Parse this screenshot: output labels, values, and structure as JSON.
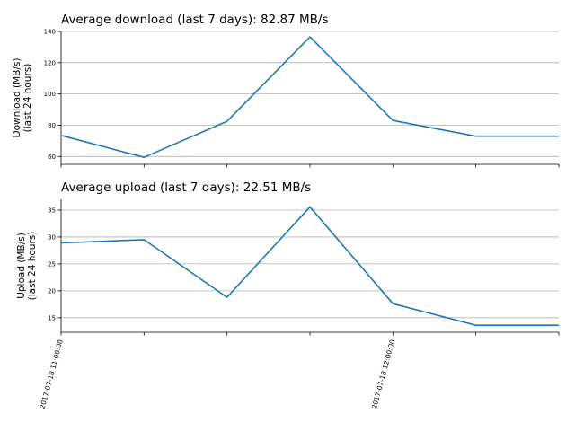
{
  "chart_data": [
    {
      "type": "line",
      "title": "Average download (last 7 days): 82.87 MB/s",
      "ylabel": [
        "Download (MB/s)",
        "(last 24 hours)"
      ],
      "ylim": [
        55,
        140
      ],
      "yticks": [
        60,
        80,
        100,
        120,
        140
      ],
      "grid": true,
      "x": [
        0,
        1,
        2,
        3,
        4,
        5,
        6
      ],
      "series": [
        {
          "values": [
            73.5,
            59.5,
            82.5,
            136.5,
            83,
            73,
            73
          ],
          "color": "#1f77b4"
        }
      ]
    },
    {
      "type": "line",
      "title": "Average upload (last 7 days): 22.51 MB/s",
      "ylabel": [
        "Upload (MB/s)",
        "(last 24 hours)"
      ],
      "ylim": [
        12.3,
        37
      ],
      "yticks": [
        15,
        20,
        25,
        30,
        35
      ],
      "grid": true,
      "x": [
        0,
        1,
        2,
        3,
        4,
        5,
        6
      ],
      "xtick_labels": [
        {
          "x": 0,
          "label": "2017-07-18 11:00:00"
        },
        {
          "x": 4,
          "label": "2017-07-18 12:00:00"
        }
      ],
      "series": [
        {
          "values": [
            28.9,
            29.5,
            18.8,
            35.6,
            17.6,
            13.6,
            13.6
          ],
          "color": "#1f77b4"
        }
      ]
    }
  ]
}
